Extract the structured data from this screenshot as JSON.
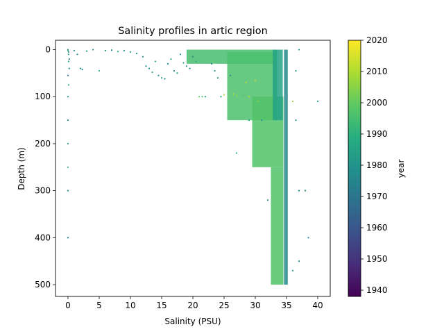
{
  "chart_data": {
    "type": "scatter",
    "title": "Salinity profiles in artic region",
    "xlabel": "Salinity (PSU)",
    "ylabel": "Depth (m)",
    "xlim": [
      -2,
      42
    ],
    "ylim": [
      525,
      -20
    ],
    "y_inverted": true,
    "xticks": [
      0,
      5,
      10,
      15,
      20,
      25,
      30,
      35,
      40
    ],
    "yticks": [
      0,
      100,
      200,
      300,
      400,
      500
    ],
    "grid": false,
    "colormap": "viridis",
    "colorbar": {
      "label": "year",
      "range": [
        1938,
        2020
      ],
      "ticks": [
        1940,
        1950,
        1960,
        1970,
        1980,
        1990,
        2000,
        2010,
        2020
      ]
    },
    "profile_bands": [
      {
        "year": 1995,
        "depth_from": 0,
        "depth_to": 30,
        "salinity_from": 19.0,
        "salinity_to": 33.5
      },
      {
        "year": 1996,
        "depth_from": 5,
        "depth_to": 150,
        "salinity_from": 25.5,
        "salinity_to": 33.5
      },
      {
        "year": 1997,
        "depth_from": 100,
        "depth_to": 250,
        "salinity_from": 29.5,
        "salinity_to": 34.5
      },
      {
        "year": 1997,
        "depth_from": 250,
        "depth_to": 500,
        "salinity_from": 32.5,
        "salinity_to": 34.5
      },
      {
        "year": 1976,
        "depth_from": 0,
        "depth_to": 500,
        "salinity_from": 34.6,
        "salinity_to": 35.2
      },
      {
        "year": 1985,
        "depth_from": 0,
        "depth_to": 150,
        "salinity_from": 32.8,
        "salinity_to": 34.4
      }
    ],
    "points": [
      {
        "x": 0.0,
        "y": 0,
        "year": 1978
      },
      {
        "x": 0.0,
        "y": 2,
        "year": 1990
      },
      {
        "x": 0.1,
        "y": 5,
        "year": 1976
      },
      {
        "x": 0.1,
        "y": 10,
        "year": 1982
      },
      {
        "x": 0.2,
        "y": 20,
        "year": 1975
      },
      {
        "x": 0.1,
        "y": 25,
        "year": 1985
      },
      {
        "x": 0.2,
        "y": 40,
        "year": 1978
      },
      {
        "x": 0.0,
        "y": 55,
        "year": 1972
      },
      {
        "x": 0.1,
        "y": 75,
        "year": 1988
      },
      {
        "x": 0.0,
        "y": 100,
        "year": 1978
      },
      {
        "x": 0.0,
        "y": 150,
        "year": 1976
      },
      {
        "x": 0.0,
        "y": 200,
        "year": 1980
      },
      {
        "x": 0.0,
        "y": 250,
        "year": 1985
      },
      {
        "x": 0.0,
        "y": 300,
        "year": 1978
      },
      {
        "x": 0.0,
        "y": 400,
        "year": 1976
      },
      {
        "x": 1.0,
        "y": 2,
        "year": 1976
      },
      {
        "x": 1.5,
        "y": 10,
        "year": 1980
      },
      {
        "x": 2.0,
        "y": 40,
        "year": 1976
      },
      {
        "x": 2.3,
        "y": 42,
        "year": 1976
      },
      {
        "x": 3.0,
        "y": 3,
        "year": 1985
      },
      {
        "x": 4.0,
        "y": 0,
        "year": 1978
      },
      {
        "x": 5.0,
        "y": 45,
        "year": 1992
      },
      {
        "x": 6.0,
        "y": 2,
        "year": 1982
      },
      {
        "x": 7.0,
        "y": 1,
        "year": 1976
      },
      {
        "x": 8.0,
        "y": 4,
        "year": 1990
      },
      {
        "x": 9.0,
        "y": 2,
        "year": 1978
      },
      {
        "x": 10.0,
        "y": 5,
        "year": 1985
      },
      {
        "x": 11.0,
        "y": 8,
        "year": 1976
      },
      {
        "x": 12.0,
        "y": 15,
        "year": 1980
      },
      {
        "x": 12.5,
        "y": 35,
        "year": 1978
      },
      {
        "x": 13.0,
        "y": 40,
        "year": 1976
      },
      {
        "x": 13.5,
        "y": 48,
        "year": 1982
      },
      {
        "x": 14.0,
        "y": 25,
        "year": 1988
      },
      {
        "x": 14.5,
        "y": 55,
        "year": 1976
      },
      {
        "x": 15.0,
        "y": 60,
        "year": 1980
      },
      {
        "x": 15.5,
        "y": 62,
        "year": 1976
      },
      {
        "x": 16.0,
        "y": 30,
        "year": 1978
      },
      {
        "x": 16.5,
        "y": 20,
        "year": 1990
      },
      {
        "x": 17.0,
        "y": 45,
        "year": 1976
      },
      {
        "x": 17.5,
        "y": 50,
        "year": 1982
      },
      {
        "x": 18.0,
        "y": 10,
        "year": 1978
      },
      {
        "x": 18.5,
        "y": 28,
        "year": 1985
      },
      {
        "x": 19.0,
        "y": 35,
        "year": 1976
      },
      {
        "x": 19.5,
        "y": 40,
        "year": 1980
      },
      {
        "x": 20.0,
        "y": 15,
        "year": 1978
      },
      {
        "x": 20.5,
        "y": 25,
        "year": 1988
      },
      {
        "x": 21.0,
        "y": 100,
        "year": 2000
      },
      {
        "x": 21.5,
        "y": 100,
        "year": 1995
      },
      {
        "x": 22.0,
        "y": 100,
        "year": 1985
      },
      {
        "x": 23.0,
        "y": 30,
        "year": 1976
      },
      {
        "x": 23.5,
        "y": 45,
        "year": 1980
      },
      {
        "x": 24.0,
        "y": 60,
        "year": 1976
      },
      {
        "x": 24.5,
        "y": 100,
        "year": 1985
      },
      {
        "x": 25.0,
        "y": 96,
        "year": 2008
      },
      {
        "x": 26.0,
        "y": 55,
        "year": 1978
      },
      {
        "x": 26.5,
        "y": 95,
        "year": 2010
      },
      {
        "x": 27.0,
        "y": 98,
        "year": 2005
      },
      {
        "x": 27.0,
        "y": 220,
        "year": 1990
      },
      {
        "x": 28.0,
        "y": 97,
        "year": 1998
      },
      {
        "x": 28.5,
        "y": 70,
        "year": 2012
      },
      {
        "x": 29.0,
        "y": 100,
        "year": 2010
      },
      {
        "x": 29.0,
        "y": 150,
        "year": 1985
      },
      {
        "x": 30.0,
        "y": 65,
        "year": 2012
      },
      {
        "x": 30.5,
        "y": 110,
        "year": 2005
      },
      {
        "x": 31.0,
        "y": 150,
        "year": 1980
      },
      {
        "x": 32.0,
        "y": 320,
        "year": 1976
      },
      {
        "x": 36.0,
        "y": 110,
        "year": 2008
      },
      {
        "x": 36.5,
        "y": 150,
        "year": 1976
      },
      {
        "x": 37.0,
        "y": 0,
        "year": 1978
      },
      {
        "x": 37.0,
        "y": 300,
        "year": 1976
      },
      {
        "x": 36.0,
        "y": 470,
        "year": 1980
      },
      {
        "x": 36.5,
        "y": 45,
        "year": 1985
      },
      {
        "x": 37.0,
        "y": 450,
        "year": 1976
      },
      {
        "x": 38.0,
        "y": 300,
        "year": 1978
      },
      {
        "x": 38.5,
        "y": 400,
        "year": 1976
      },
      {
        "x": 40.0,
        "y": 110,
        "year": 1980
      }
    ]
  }
}
